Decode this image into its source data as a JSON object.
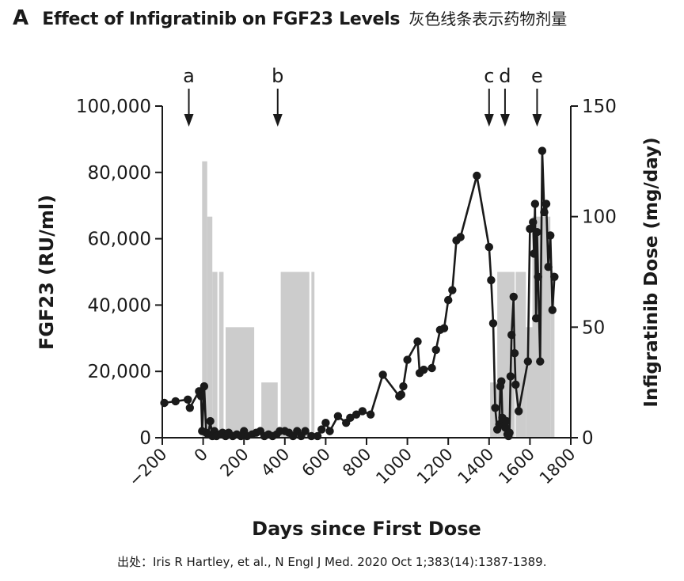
{
  "panel_label": "A",
  "title": "Effect of Infigratinib on FGF23 Levels",
  "title_note": "灰色线条表示药物剂量",
  "source": "出处：Iris R Hartley, et al., N Engl J Med. 2020 Oct 1;383(14):1387-1389.",
  "colors": {
    "line": "#1a1a1a",
    "bars": "#cccccc",
    "axis": "#1a1a1a"
  },
  "chart_data": {
    "type": "line",
    "xlabel": "Days since First Dose",
    "ylabel": "FGF23 (RU/ml)",
    "y2label": "Infigratinib Dose (mg/day)",
    "xlim": [
      -200,
      1800
    ],
    "ylim": [
      0,
      100000
    ],
    "y2lim": [
      0,
      150
    ],
    "x_ticks": [
      -200,
      0,
      200,
      400,
      600,
      800,
      1000,
      1200,
      1400,
      1600,
      1800
    ],
    "x_tick_labels": [
      "−200",
      "0",
      "200",
      "400",
      "600",
      "800",
      "1000",
      "1200",
      "1400",
      "1600",
      "1800"
    ],
    "y_ticks": [
      0,
      20000,
      40000,
      60000,
      80000,
      100000
    ],
    "y_tick_labels": [
      "0",
      "20,000",
      "40,000",
      "60,000",
      "80,000",
      "100,000"
    ],
    "y2_ticks": [
      0,
      50,
      100,
      150
    ],
    "y2_tick_labels": [
      "0",
      "50",
      "100",
      "150"
    ],
    "annotations": [
      {
        "label": "a",
        "x": -70
      },
      {
        "label": "b",
        "x": 365
      },
      {
        "label": "c",
        "x": 1400
      },
      {
        "label": "d",
        "x": 1478
      },
      {
        "label": "e",
        "x": 1635
      }
    ],
    "dose_bars": [
      {
        "x_start": -5,
        "x_end": 20,
        "dose": 125
      },
      {
        "x_start": 20,
        "x_end": 45,
        "dose": 100
      },
      {
        "x_start": 45,
        "x_end": 70,
        "dose": 75
      },
      {
        "x_start": 78,
        "x_end": 100,
        "dose": 75
      },
      {
        "x_start": 110,
        "x_end": 250,
        "dose": 50
      },
      {
        "x_start": 285,
        "x_end": 365,
        "dose": 25
      },
      {
        "x_start": 380,
        "x_end": 520,
        "dose": 75
      },
      {
        "x_start": 530,
        "x_end": 545,
        "dose": 75
      },
      {
        "x_start": 1405,
        "x_end": 1440,
        "dose": 25
      },
      {
        "x_start": 1440,
        "x_end": 1525,
        "dose": 75
      },
      {
        "x_start": 1530,
        "x_end": 1580,
        "dose": 75
      },
      {
        "x_start": 1580,
        "x_end": 1612,
        "dose": 50
      },
      {
        "x_start": 1612,
        "x_end": 1645,
        "dose": 100
      },
      {
        "x_start": 1645,
        "x_end": 1700,
        "dose": 100
      },
      {
        "x_start": 1700,
        "x_end": 1720,
        "dose": 75
      }
    ],
    "series": [
      {
        "name": "FGF23",
        "x": [
          -190,
          -135,
          -75,
          -65,
          -20,
          -10,
          -5,
          5,
          15,
          25,
          35,
          45,
          55,
          65,
          80,
          95,
          110,
          125,
          145,
          165,
          185,
          200,
          215,
          240,
          260,
          280,
          300,
          320,
          340,
          360,
          375,
          400,
          420,
          440,
          460,
          480,
          500,
          530,
          560,
          580,
          600,
          620,
          660,
          700,
          720,
          750,
          780,
          820,
          880,
          960,
          970,
          980,
          1000,
          1050,
          1060,
          1080,
          1120,
          1140,
          1160,
          1180,
          1200,
          1220,
          1240,
          1260,
          1340,
          1400,
          1410,
          1420,
          1430,
          1440,
          1450,
          1455,
          1460,
          1465,
          1470,
          1475,
          1480,
          1485,
          1490,
          1495,
          1500,
          1505,
          1510,
          1520,
          1525,
          1530,
          1545,
          1590,
          1600,
          1615,
          1620,
          1625,
          1630,
          1635,
          1640,
          1650,
          1660,
          1670,
          1680,
          1690,
          1700,
          1710,
          1720
        ],
        "y": [
          10500,
          11000,
          11500,
          9000,
          14000,
          12500,
          2000,
          15500,
          1500,
          1000,
          5000,
          500,
          2000,
          500,
          1000,
          1500,
          500,
          1500,
          500,
          1000,
          500,
          2000,
          500,
          1000,
          1500,
          2000,
          500,
          1000,
          500,
          1000,
          2000,
          2000,
          1500,
          500,
          2000,
          500,
          2000,
          500,
          500,
          2500,
          4500,
          2000,
          6500,
          4500,
          6000,
          7000,
          8000,
          7000,
          19000,
          12500,
          13000,
          15500,
          23500,
          29000,
          19500,
          20500,
          21000,
          26500,
          32500,
          33000,
          41500,
          44500,
          59500,
          60500,
          79000,
          57500,
          47500,
          34500,
          9000,
          2500,
          4000,
          15500,
          17000,
          6000,
          5000,
          3500,
          3000,
          5000,
          1000,
          500,
          1500,
          18500,
          31000,
          42500,
          25500,
          16000,
          8000,
          23000,
          63000,
          65000,
          55500,
          70500,
          36000,
          62000,
          48500,
          23000,
          86500,
          68000,
          70500,
          51500,
          61000,
          38500,
          48500
        ]
      }
    ]
  }
}
